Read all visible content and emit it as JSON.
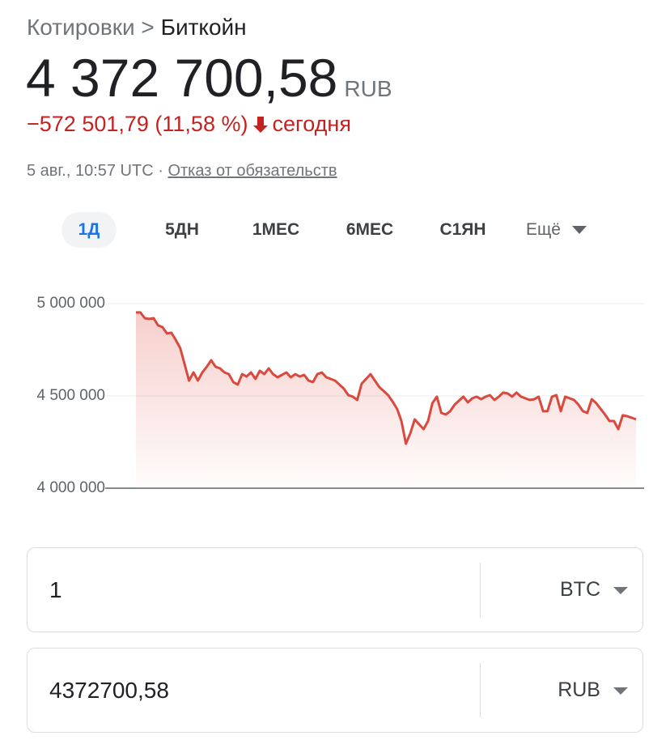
{
  "header": {
    "breadcrumb": "Котировки >",
    "current": "Биткойн",
    "price": "4 372 700,58",
    "currency": "RUB",
    "change": "−572 501,79 (11,58 %)",
    "change_period": "сегодня",
    "timestamp": "5 авг., 10:57 UTC",
    "separator": "·",
    "disclaimer": "Отказ от обязательств"
  },
  "tabs": [
    "1Д",
    "5ДН",
    "1МЕС",
    "6МЕС",
    "С1ЯН",
    "Ещё"
  ],
  "converter": {
    "rows": [
      {
        "amount": "1",
        "unit": "BTC"
      },
      {
        "amount": "4372700,58",
        "unit": "RUB"
      }
    ]
  },
  "chart_data": {
    "type": "line",
    "color": "#d9493d",
    "grid": true,
    "categories": [
      null,
      null,
      null,
      null,
      null,
      null,
      null,
      null,
      null,
      null,
      null,
      null,
      null,
      null,
      null,
      null,
      null,
      null,
      null,
      null,
      null,
      null,
      null,
      null,
      null,
      null,
      null,
      null,
      null,
      null,
      null,
      null,
      null,
      null,
      null,
      null,
      null,
      null,
      null,
      null,
      null,
      null,
      null,
      null,
      null,
      null,
      null,
      null,
      null,
      null,
      null,
      null,
      null,
      null,
      null,
      null,
      null,
      null,
      null,
      null,
      null,
      null,
      null,
      null,
      null,
      null,
      null,
      null,
      null,
      null,
      null,
      null,
      null,
      null,
      null,
      null,
      null,
      null,
      null,
      null,
      null,
      null,
      null,
      null,
      null,
      null,
      null,
      null,
      null,
      null,
      null,
      null,
      null,
      null,
      null,
      null,
      null,
      null,
      null,
      null,
      null,
      null,
      null,
      null,
      null,
      null,
      null,
      null,
      null,
      null,
      null,
      null,
      null,
      null
    ],
    "values": [
      4952000,
      4952000,
      4921000,
      4917000,
      4921000,
      4882000,
      4873000,
      4838000,
      4842000,
      4803000,
      4759000,
      4671000,
      4583000,
      4627000,
      4583000,
      4627000,
      4658000,
      4693000,
      4658000,
      4649000,
      4627000,
      4618000,
      4575000,
      4561000,
      4618000,
      4605000,
      4627000,
      4592000,
      4636000,
      4618000,
      4649000,
      4618000,
      4601000,
      4614000,
      4627000,
      4601000,
      4618000,
      4605000,
      4614000,
      4583000,
      4575000,
      4618000,
      4627000,
      4601000,
      4592000,
      4583000,
      4561000,
      4539000,
      4504000,
      4496000,
      4478000,
      4566000,
      4592000,
      4618000,
      4583000,
      4548000,
      4526000,
      4504000,
      4469000,
      4430000,
      4364000,
      4241000,
      4298000,
      4373000,
      4346000,
      4320000,
      4364000,
      4461000,
      4496000,
      4408000,
      4399000,
      4417000,
      4452000,
      4474000,
      4496000,
      4465000,
      4487000,
      4496000,
      4482000,
      4496000,
      4504000,
      4478000,
      4496000,
      4518000,
      4513000,
      4496000,
      4518000,
      4496000,
      4487000,
      4478000,
      4482000,
      4496000,
      4417000,
      4417000,
      4496000,
      4504000,
      4417000,
      4496000,
      4487000,
      4478000,
      4452000,
      4417000,
      4408000,
      4482000,
      4461000,
      4430000,
      4399000,
      4364000,
      4364000,
      4320000,
      4395000,
      4390000,
      4382000,
      4373000
    ],
    "ylim": [
      4000000,
      5000000
    ],
    "yticks": [
      {
        "value": 4000000,
        "label": "4 000 000"
      },
      {
        "value": 4500000,
        "label": "4 500 000"
      },
      {
        "value": 5000000,
        "label": "5 000 000"
      }
    ]
  }
}
